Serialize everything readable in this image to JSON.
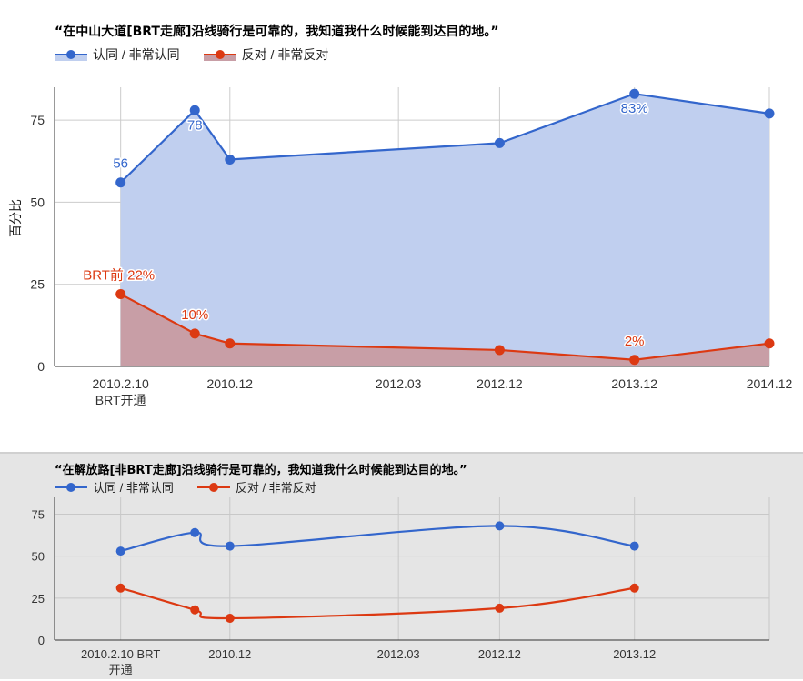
{
  "chart_data": [
    {
      "type": "area",
      "title": "“在中山大道[BRT走廊]沿线骑行是可靠的，我知道我什么时候能到达目的地。”",
      "ylabel": "百分比",
      "ylim": [
        0,
        85
      ],
      "yticks": [
        0,
        25,
        50,
        75
      ],
      "grid": true,
      "legend_position": "top-left",
      "x_ticks": [
        {
          "label": "2010.2.10",
          "sublabel": "BRT开通",
          "t": 2010.11
        },
        {
          "label": "2010.12",
          "t": 2010.92
        },
        {
          "label": "2012.03",
          "t": 2012.17
        },
        {
          "label": "2012.12",
          "t": 2012.92
        },
        {
          "label": "2013.12",
          "t": 2013.92
        },
        {
          "label": "2014.12",
          "t": 2014.92
        }
      ],
      "x_range": [
        2009.62,
        2014.92
      ],
      "series": [
        {
          "name": "认同 / 非常认同",
          "color": "#3366cc",
          "fill": "#c0cfef",
          "points": [
            {
              "t": 2010.11,
              "y": 56,
              "label": "56"
            },
            {
              "t": 2010.66,
              "y": 78,
              "label": "78"
            },
            {
              "t": 2010.92,
              "y": 63,
              "label": ""
            },
            {
              "t": 2012.92,
              "y": 68,
              "label": ""
            },
            {
              "t": 2013.92,
              "y": 83,
              "label": "83%"
            },
            {
              "t": 2014.92,
              "y": 77,
              "label": ""
            }
          ]
        },
        {
          "name": "反对 / 非常反对",
          "color": "#dc3912",
          "fill": "#c89ea6",
          "points": [
            {
              "t": 2010.11,
              "y": 22,
              "label": "BRT前 22%"
            },
            {
              "t": 2010.66,
              "y": 10,
              "label": "10%"
            },
            {
              "t": 2010.92,
              "y": 7,
              "label": ""
            },
            {
              "t": 2012.92,
              "y": 5,
              "label": ""
            },
            {
              "t": 2013.92,
              "y": 2,
              "label": "2%"
            },
            {
              "t": 2014.92,
              "y": 7,
              "label": ""
            }
          ]
        }
      ]
    },
    {
      "type": "line",
      "title": "“在解放路[非BRT走廊]沿线骑行是可靠的，我知道我什么时候能到达目的地。”",
      "ylim": [
        0,
        85
      ],
      "yticks": [
        0,
        25,
        50,
        75
      ],
      "grid": true,
      "legend_position": "top-left",
      "x_ticks": [
        {
          "label": "2010.2.10 BRT",
          "sublabel": "开通",
          "t": 2010.11
        },
        {
          "label": "2010.12",
          "t": 2010.92
        },
        {
          "label": "2012.03",
          "t": 2012.17
        },
        {
          "label": "2012.12",
          "t": 2012.92
        },
        {
          "label": "2013.12",
          "t": 2013.92
        },
        {
          "label": "",
          "t": 2014.92
        }
      ],
      "x_range": [
        2009.62,
        2014.92
      ],
      "series": [
        {
          "name": "认同 / 非常认同",
          "color": "#3366cc",
          "points": [
            {
              "t": 2010.11,
              "y": 53
            },
            {
              "t": 2010.66,
              "y": 64
            },
            {
              "t": 2010.92,
              "y": 56
            },
            {
              "t": 2012.92,
              "y": 68
            },
            {
              "t": 2013.92,
              "y": 56
            }
          ]
        },
        {
          "name": "反对 / 非常反对",
          "color": "#dc3912",
          "points": [
            {
              "t": 2010.11,
              "y": 31
            },
            {
              "t": 2010.66,
              "y": 18
            },
            {
              "t": 2010.92,
              "y": 13
            },
            {
              "t": 2012.92,
              "y": 19
            },
            {
              "t": 2013.92,
              "y": 31
            }
          ]
        }
      ]
    }
  ]
}
